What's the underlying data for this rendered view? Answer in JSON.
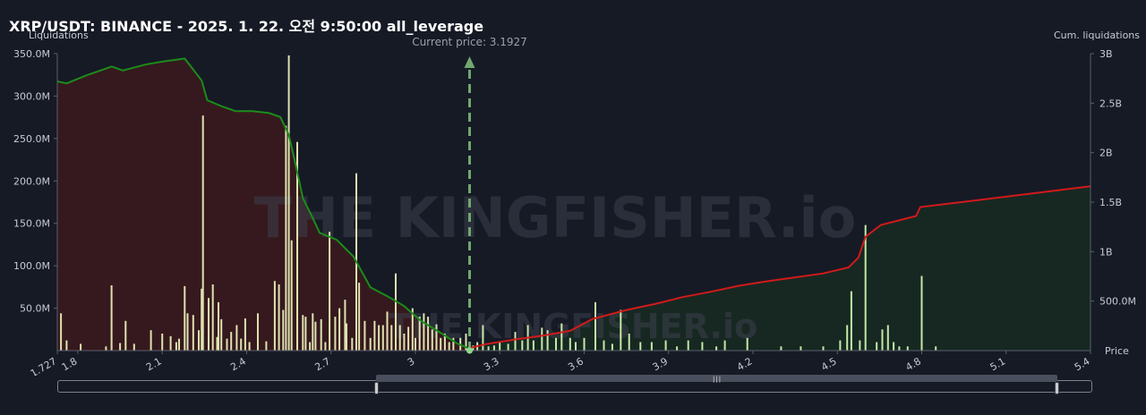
{
  "header": {
    "title": "XRP/USDT: BINANCE - 2025. 1. 22. 오전 9:50:00 all_leverage"
  },
  "chart_data": {
    "type": "bar",
    "left_axis_title": "Liquidations",
    "right_axis_title": "Cum. liquidations",
    "x_axis_title": "Price",
    "current_price_label": "Current price: 3.1927",
    "current_price": 3.1927,
    "watermark": "THE KINGFISHER.io",
    "x_range": [
      1.727,
      5.4
    ],
    "y_left_range": [
      0,
      350
    ],
    "y_right_range": [
      0,
      3000
    ],
    "x_ticks": [
      "1.727",
      "1.8",
      "2.1",
      "2.4",
      "2.7",
      "3",
      "3.3",
      "3.6",
      "3.9",
      "4.2",
      "4.5",
      "4.8",
      "5.1",
      "5.4"
    ],
    "x_tick_values": [
      1.727,
      1.8,
      2.1,
      2.4,
      2.7,
      3.0,
      3.3,
      3.6,
      3.9,
      4.2,
      4.5,
      4.8,
      5.1,
      5.4
    ],
    "y_left_ticks": [
      "50.0M",
      "100.0M",
      "150.0M",
      "200.0M",
      "250.0M",
      "300.0M",
      "350.0M"
    ],
    "y_left_tick_values": [
      50,
      100,
      150,
      200,
      250,
      300,
      350
    ],
    "y_right_ticks": [
      "500.0M",
      "1B",
      "1.5B",
      "2B",
      "2.5B",
      "3B"
    ],
    "y_right_tick_values": [
      500,
      1000,
      1500,
      2000,
      2500,
      3000
    ],
    "bars_unit": "M USDT",
    "bars": [
      [
        1.74,
        44
      ],
      [
        1.76,
        12
      ],
      [
        1.81,
        8
      ],
      [
        1.9,
        5
      ],
      [
        1.92,
        77
      ],
      [
        1.95,
        9
      ],
      [
        1.97,
        35
      ],
      [
        2.0,
        8
      ],
      [
        2.06,
        24
      ],
      [
        2.1,
        20
      ],
      [
        2.13,
        17
      ],
      [
        2.15,
        10
      ],
      [
        2.16,
        14
      ],
      [
        2.18,
        76
      ],
      [
        2.19,
        44
      ],
      [
        2.21,
        42
      ],
      [
        2.23,
        24
      ],
      [
        2.24,
        73
      ],
      [
        2.245,
        277
      ],
      [
        2.265,
        62
      ],
      [
        2.28,
        78
      ],
      [
        2.295,
        16
      ],
      [
        2.3,
        57
      ],
      [
        2.31,
        37
      ],
      [
        2.33,
        14
      ],
      [
        2.345,
        22
      ],
      [
        2.365,
        30
      ],
      [
        2.38,
        14
      ],
      [
        2.395,
        38
      ],
      [
        2.41,
        10
      ],
      [
        2.44,
        44
      ],
      [
        2.47,
        11
      ],
      [
        2.5,
        82
      ],
      [
        2.515,
        78
      ],
      [
        2.53,
        48
      ],
      [
        2.54,
        265
      ],
      [
        2.55,
        348
      ],
      [
        2.56,
        130
      ],
      [
        2.58,
        246
      ],
      [
        2.6,
        42
      ],
      [
        2.61,
        40
      ],
      [
        2.625,
        10
      ],
      [
        2.635,
        44
      ],
      [
        2.645,
        34
      ],
      [
        2.665,
        37
      ],
      [
        2.68,
        10
      ],
      [
        2.695,
        140
      ],
      [
        2.715,
        40
      ],
      [
        2.73,
        50
      ],
      [
        2.75,
        60
      ],
      [
        2.755,
        32
      ],
      [
        2.775,
        15
      ],
      [
        2.79,
        209
      ],
      [
        2.8,
        80
      ],
      [
        2.82,
        35
      ],
      [
        2.84,
        15
      ],
      [
        2.855,
        35
      ],
      [
        2.87,
        30
      ],
      [
        2.885,
        30
      ],
      [
        2.9,
        46
      ],
      [
        2.915,
        30
      ],
      [
        2.93,
        91
      ],
      [
        2.945,
        30
      ],
      [
        2.96,
        20
      ],
      [
        2.975,
        28
      ],
      [
        2.99,
        50
      ],
      [
        3.0,
        15
      ],
      [
        3.015,
        40
      ],
      [
        3.03,
        44
      ],
      [
        3.045,
        40
      ],
      [
        3.06,
        25
      ],
      [
        3.075,
        31
      ],
      [
        3.09,
        15
      ],
      [
        3.105,
        20
      ],
      [
        3.12,
        10
      ],
      [
        3.135,
        15
      ],
      [
        3.16,
        15
      ],
      [
        3.18,
        20
      ],
      [
        3.205,
        6
      ],
      [
        3.22,
        10
      ],
      [
        3.24,
        30
      ],
      [
        3.26,
        5
      ],
      [
        3.28,
        6
      ],
      [
        3.3,
        10
      ],
      [
        3.33,
        8
      ],
      [
        3.355,
        22
      ],
      [
        3.38,
        12
      ],
      [
        3.4,
        30
      ],
      [
        3.42,
        12
      ],
      [
        3.45,
        27
      ],
      [
        3.47,
        24
      ],
      [
        3.5,
        15
      ],
      [
        3.52,
        32
      ],
      [
        3.55,
        15
      ],
      [
        3.57,
        10
      ],
      [
        3.6,
        15
      ],
      [
        3.64,
        57
      ],
      [
        3.67,
        12
      ],
      [
        3.7,
        8
      ],
      [
        3.73,
        48
      ],
      [
        3.76,
        20
      ],
      [
        3.8,
        10
      ],
      [
        3.84,
        10
      ],
      [
        3.89,
        12
      ],
      [
        3.93,
        5
      ],
      [
        3.97,
        12
      ],
      [
        4.02,
        10
      ],
      [
        4.07,
        5
      ],
      [
        4.1,
        12
      ],
      [
        4.18,
        15
      ],
      [
        4.3,
        5
      ],
      [
        4.37,
        5
      ],
      [
        4.45,
        5
      ],
      [
        4.51,
        12
      ],
      [
        4.535,
        30
      ],
      [
        4.55,
        70
      ],
      [
        4.58,
        12
      ],
      [
        4.6,
        148
      ],
      [
        4.64,
        10
      ],
      [
        4.66,
        25
      ],
      [
        4.68,
        30
      ],
      [
        4.7,
        10
      ],
      [
        4.72,
        5
      ],
      [
        4.75,
        5
      ],
      [
        4.8,
        88
      ],
      [
        4.85,
        5
      ]
    ],
    "cumulative_left": [
      [
        1.727,
        2720
      ],
      [
        1.76,
        2700
      ],
      [
        1.83,
        2780
      ],
      [
        1.92,
        2870
      ],
      [
        1.96,
        2830
      ],
      [
        2.04,
        2890
      ],
      [
        2.1,
        2920
      ],
      [
        2.18,
        2950
      ],
      [
        2.21,
        2840
      ],
      [
        2.24,
        2730
      ],
      [
        2.26,
        2530
      ],
      [
        2.31,
        2470
      ],
      [
        2.36,
        2420
      ],
      [
        2.42,
        2420
      ],
      [
        2.48,
        2400
      ],
      [
        2.52,
        2360
      ],
      [
        2.55,
        2180
      ],
      [
        2.575,
        1870
      ],
      [
        2.6,
        1540
      ],
      [
        2.63,
        1370
      ],
      [
        2.66,
        1190
      ],
      [
        2.72,
        1120
      ],
      [
        2.78,
        950
      ],
      [
        2.84,
        640
      ],
      [
        2.9,
        550
      ],
      [
        2.96,
        450
      ],
      [
        3.02,
        300
      ],
      [
        3.09,
        180
      ],
      [
        3.15,
        70
      ],
      [
        3.1927,
        20
      ]
    ],
    "cumulative_right": [
      [
        3.1927,
        25
      ],
      [
        3.25,
        65
      ],
      [
        3.35,
        110
      ],
      [
        3.45,
        150
      ],
      [
        3.55,
        200
      ],
      [
        3.63,
        320
      ],
      [
        3.75,
        410
      ],
      [
        3.85,
        470
      ],
      [
        3.95,
        540
      ],
      [
        4.05,
        595
      ],
      [
        4.15,
        655
      ],
      [
        4.25,
        700
      ],
      [
        4.35,
        740
      ],
      [
        4.45,
        780
      ],
      [
        4.54,
        840
      ],
      [
        4.575,
        940
      ],
      [
        4.6,
        1150
      ],
      [
        4.655,
        1270
      ],
      [
        4.78,
        1360
      ],
      [
        4.795,
        1450
      ],
      [
        5.0,
        1520
      ],
      [
        5.2,
        1590
      ],
      [
        5.4,
        1660
      ]
    ],
    "colors": {
      "background": "#161a25",
      "bar": "#dfe2b0",
      "bar_right": "#c4e8a8",
      "cum_left_line": "#1b8c1b",
      "cum_left_fill": "#3a1a1e",
      "cum_right_line": "#d11a1a",
      "cum_right_fill": "#172a22",
      "current_price_line": "#6fa86f",
      "axis_text": "#c8cbd4"
    }
  }
}
